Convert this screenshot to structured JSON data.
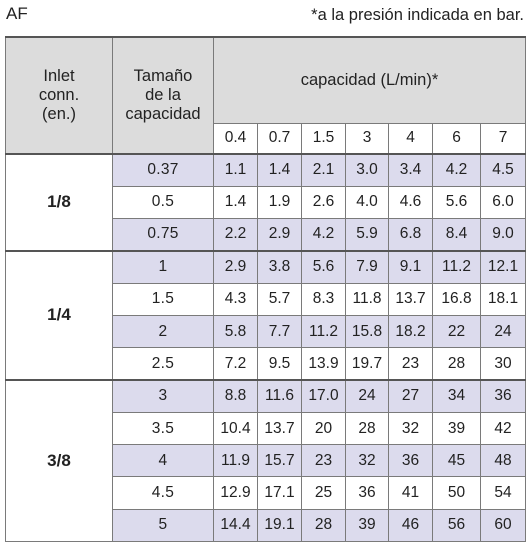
{
  "title": "AF",
  "note": "*a la presión indicada en bar.",
  "headers": {
    "inlet": [
      "Inlet",
      "conn.",
      "(en.)"
    ],
    "size": [
      "Tamaño",
      "de la",
      "capacidad"
    ],
    "capacity": "capacidad (L/min)*"
  },
  "pressures": [
    "0.4",
    "0.7",
    "1.5",
    "3",
    "4",
    "6",
    "7"
  ],
  "groups": [
    {
      "conn": "1/8",
      "rows": [
        {
          "size": "0.37",
          "values": [
            "1.1",
            "1.4",
            "2.1",
            "3.0",
            "3.4",
            "4.2",
            "4.5"
          ]
        },
        {
          "size": "0.5",
          "values": [
            "1.4",
            "1.9",
            "2.6",
            "4.0",
            "4.6",
            "5.6",
            "6.0"
          ]
        },
        {
          "size": "0.75",
          "values": [
            "2.2",
            "2.9",
            "4.2",
            "5.9",
            "6.8",
            "8.4",
            "9.0"
          ]
        }
      ]
    },
    {
      "conn": "1/4",
      "rows": [
        {
          "size": "1",
          "values": [
            "2.9",
            "3.8",
            "5.6",
            "7.9",
            "9.1",
            "11.2",
            "12.1"
          ]
        },
        {
          "size": "1.5",
          "values": [
            "4.3",
            "5.7",
            "8.3",
            "11.8",
            "13.7",
            "16.8",
            "18.1"
          ]
        },
        {
          "size": "2",
          "values": [
            "5.8",
            "7.7",
            "11.2",
            "15.8",
            "18.2",
            "22",
            "24"
          ]
        },
        {
          "size": "2.5",
          "values": [
            "7.2",
            "9.5",
            "13.9",
            "19.7",
            "23",
            "28",
            "30"
          ]
        }
      ]
    },
    {
      "conn": "3/8",
      "rows": [
        {
          "size": "3",
          "values": [
            "8.8",
            "11.6",
            "17.0",
            "24",
            "27",
            "34",
            "36"
          ]
        },
        {
          "size": "3.5",
          "values": [
            "10.4",
            "13.7",
            "20",
            "28",
            "32",
            "39",
            "42"
          ]
        },
        {
          "size": "4",
          "values": [
            "11.9",
            "15.7",
            "23",
            "32",
            "36",
            "45",
            "48"
          ]
        },
        {
          "size": "4.5",
          "values": [
            "12.9",
            "17.1",
            "25",
            "36",
            "41",
            "50",
            "54"
          ]
        },
        {
          "size": "5",
          "values": [
            "14.4",
            "19.1",
            "28",
            "39",
            "46",
            "56",
            "60"
          ]
        }
      ]
    }
  ]
}
